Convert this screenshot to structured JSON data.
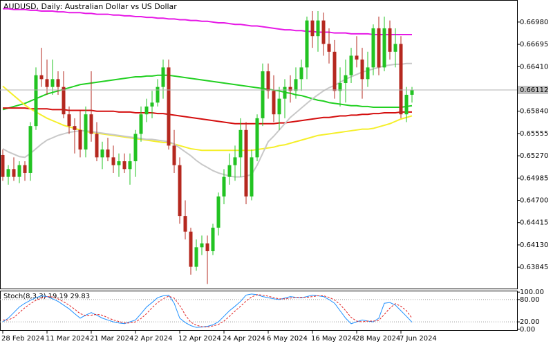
{
  "chart_data": {
    "type": "candlestick",
    "title": "AUDUSD, Daily:  Australian Dollar vs US Dollar",
    "categories": [
      "28 Feb 2024",
      null,
      null,
      null,
      null,
      null,
      null,
      null,
      "11 Mar 2024",
      null,
      null,
      null,
      null,
      null,
      null,
      null,
      "21 Mar 2024",
      null,
      null,
      null,
      null,
      null,
      null,
      null,
      "2 Apr 2024",
      null,
      null,
      null,
      null,
      null,
      null,
      null,
      "12 Apr 2024",
      null,
      null,
      null,
      null,
      null,
      null,
      null,
      "24 Apr 2024",
      null,
      null,
      null,
      null,
      null,
      null,
      null,
      "6 May 2024",
      null,
      null,
      null,
      null,
      null,
      null,
      null,
      "16 May 2024",
      null,
      null,
      null,
      null,
      null,
      null,
      null,
      "28 May 2024",
      null,
      null,
      null,
      null,
      null,
      null,
      null,
      "7 Jun 2024",
      null,
      null
    ],
    "open": [
      0.6528,
      0.65,
      0.651,
      0.65,
      0.6515,
      0.6505,
      0.6565,
      0.663,
      0.6625,
      0.6615,
      0.6625,
      0.6615,
      0.658,
      0.6565,
      0.656,
      0.6535,
      0.658,
      0.6555,
      0.6525,
      0.6535,
      0.6525,
      0.6515,
      0.652,
      0.651,
      0.652,
      0.6555,
      0.658,
      0.659,
      0.6595,
      0.6615,
      0.664,
      0.654,
      0.6515,
      0.645,
      0.643,
      0.6385,
      0.641,
      0.6415,
      0.6405,
      0.6435,
      0.6475,
      0.65,
      0.6515,
      0.6525,
      0.656,
      0.6475,
      0.6525,
      0.6575,
      0.6635,
      0.661,
      0.658,
      0.66,
      0.6615,
      0.661,
      0.6625,
      0.664,
      0.67,
      0.668,
      0.67,
      0.667,
      0.666,
      0.661,
      0.662,
      0.663,
      0.6655,
      0.665,
      0.6625,
      0.664,
      0.669,
      0.664,
      0.669,
      0.666,
      0.667,
      0.658,
      0.6605
    ],
    "high": [
      0.6535,
      0.6515,
      0.6525,
      0.652,
      0.652,
      0.657,
      0.664,
      0.6665,
      0.665,
      0.665,
      0.6635,
      0.6635,
      0.659,
      0.6575,
      0.6585,
      0.659,
      0.6635,
      0.657,
      0.6545,
      0.655,
      0.654,
      0.653,
      0.653,
      0.653,
      0.656,
      0.659,
      0.66,
      0.661,
      0.6625,
      0.665,
      0.665,
      0.656,
      0.6525,
      0.647,
      0.6435,
      0.642,
      0.6425,
      0.6425,
      0.644,
      0.648,
      0.651,
      0.653,
      0.654,
      0.6575,
      0.657,
      0.6535,
      0.658,
      0.6645,
      0.6645,
      0.663,
      0.6615,
      0.6625,
      0.663,
      0.664,
      0.665,
      0.6705,
      0.6712,
      0.6712,
      0.671,
      0.669,
      0.6675,
      0.664,
      0.665,
      0.6665,
      0.668,
      0.6665,
      0.666,
      0.6695,
      0.6705,
      0.6705,
      0.67,
      0.669,
      0.668,
      0.6615,
      0.6615
    ],
    "low": [
      0.6495,
      0.649,
      0.6495,
      0.6492,
      0.6495,
      0.6495,
      0.656,
      0.6615,
      0.6605,
      0.6605,
      0.6605,
      0.6575,
      0.6555,
      0.653,
      0.6525,
      0.6525,
      0.6545,
      0.652,
      0.651,
      0.652,
      0.6505,
      0.65,
      0.6505,
      0.649,
      0.65,
      0.6545,
      0.657,
      0.6575,
      0.659,
      0.66,
      0.6535,
      0.6505,
      0.644,
      0.642,
      0.6375,
      0.638,
      0.64,
      0.6363,
      0.64,
      0.6425,
      0.6465,
      0.649,
      0.6495,
      0.65,
      0.6465,
      0.647,
      0.652,
      0.6565,
      0.66,
      0.657,
      0.656,
      0.6575,
      0.6595,
      0.66,
      0.661,
      0.6625,
      0.6665,
      0.666,
      0.6655,
      0.6645,
      0.66,
      0.659,
      0.6595,
      0.662,
      0.664,
      0.66,
      0.6615,
      0.663,
      0.663,
      0.6635,
      0.665,
      0.664,
      0.6575,
      0.657,
      0.6595
    ],
    "close": [
      0.65,
      0.651,
      0.65,
      0.6515,
      0.6505,
      0.6565,
      0.663,
      0.6625,
      0.6615,
      0.6625,
      0.6615,
      0.658,
      0.6565,
      0.656,
      0.6535,
      0.658,
      0.6555,
      0.6525,
      0.6535,
      0.6525,
      0.6515,
      0.652,
      0.651,
      0.652,
      0.6555,
      0.658,
      0.659,
      0.6595,
      0.6615,
      0.664,
      0.654,
      0.6515,
      0.645,
      0.643,
      0.6385,
      0.641,
      0.6415,
      0.6405,
      0.6435,
      0.6475,
      0.65,
      0.6515,
      0.6525,
      0.656,
      0.6475,
      0.6525,
      0.6575,
      0.6635,
      0.661,
      0.658,
      0.66,
      0.6615,
      0.661,
      0.6625,
      0.664,
      0.67,
      0.668,
      0.67,
      0.667,
      0.666,
      0.661,
      0.662,
      0.663,
      0.6655,
      0.665,
      0.6625,
      0.664,
      0.669,
      0.664,
      0.669,
      0.666,
      0.667,
      0.658,
      0.6605,
      0.6611
    ],
    "up_color": "#22c322",
    "down_color": "#b5281f",
    "lines": [
      {
        "color": "#e619e6",
        "values": [
          0.6715,
          0.6715,
          0.6714,
          0.6714,
          0.6714,
          0.6713,
          0.6713,
          0.6712,
          0.6712,
          0.6712,
          0.6711,
          0.6711,
          0.671,
          0.671,
          0.671,
          0.6709,
          0.6709,
          0.6708,
          0.6708,
          0.6708,
          0.6707,
          0.6707,
          0.6706,
          0.6706,
          0.6705,
          0.6705,
          0.6704,
          0.6704,
          0.6703,
          0.6703,
          0.6702,
          0.6702,
          0.6701,
          0.6701,
          0.67,
          0.67,
          0.6699,
          0.6699,
          0.6698,
          0.6697,
          0.6697,
          0.6696,
          0.6695,
          0.6695,
          0.6694,
          0.6693,
          0.6693,
          0.6692,
          0.6691,
          0.669,
          0.6689,
          0.6688,
          0.6688,
          0.6687,
          0.6687,
          0.6686,
          0.6686,
          0.6685,
          0.6685,
          0.6685,
          0.6684,
          0.6684,
          0.6684,
          0.6683,
          0.6683,
          0.6683,
          0.6683,
          0.6682,
          0.6682,
          0.6682,
          0.6682,
          0.6682,
          0.6682,
          0.6682,
          0.6682
        ]
      },
      {
        "color": "#22d022",
        "values": [
          0.6586,
          0.6588,
          0.659,
          0.6592,
          0.6594,
          0.6597,
          0.66,
          0.6603,
          0.6606,
          0.6608,
          0.661,
          0.6612,
          0.6614,
          0.6616,
          0.6618,
          0.6619,
          0.662,
          0.6621,
          0.6622,
          0.6623,
          0.6624,
          0.6625,
          0.6626,
          0.6627,
          0.6628,
          0.6628,
          0.6629,
          0.6629,
          0.663,
          0.663,
          0.663,
          0.6629,
          0.6628,
          0.6627,
          0.6626,
          0.6625,
          0.6624,
          0.6623,
          0.6622,
          0.6621,
          0.662,
          0.6619,
          0.6618,
          0.6617,
          0.6616,
          0.6615,
          0.6614,
          0.6613,
          0.6612,
          0.6611,
          0.661,
          0.6608,
          0.6607,
          0.6605,
          0.6604,
          0.6602,
          0.66,
          0.6598,
          0.6597,
          0.6595,
          0.6594,
          0.6593,
          0.6592,
          0.6591,
          0.6591,
          0.659,
          0.659,
          0.6589,
          0.6589,
          0.6589,
          0.6589,
          0.6589,
          0.6589,
          0.659,
          0.6591
        ]
      },
      {
        "color": "#d40e0e",
        "values": [
          0.6588,
          0.6588,
          0.6588,
          0.6588,
          0.6588,
          0.6587,
          0.6587,
          0.6587,
          0.6587,
          0.6586,
          0.6586,
          0.6586,
          0.6585,
          0.6585,
          0.6585,
          0.6585,
          0.6585,
          0.6584,
          0.6584,
          0.6584,
          0.6584,
          0.6583,
          0.6583,
          0.6583,
          0.6582,
          0.6582,
          0.6582,
          0.6582,
          0.6581,
          0.6581,
          0.658,
          0.6579,
          0.6578,
          0.6577,
          0.6576,
          0.6575,
          0.6574,
          0.6573,
          0.6572,
          0.6571,
          0.657,
          0.6569,
          0.6568,
          0.6568,
          0.6568,
          0.6568,
          0.6568,
          0.6568,
          0.6568,
          0.6568,
          0.6569,
          0.6569,
          0.657,
          0.6571,
          0.6572,
          0.6573,
          0.6574,
          0.6575,
          0.6576,
          0.6576,
          0.6577,
          0.6578,
          0.6578,
          0.6579,
          0.6579,
          0.658,
          0.658,
          0.6581,
          0.6581,
          0.6582,
          0.6582,
          0.6582,
          0.6583,
          0.6583,
          0.6583
        ]
      },
      {
        "color": "#f5ef2a",
        "values": [
          0.6616,
          0.661,
          0.6604,
          0.6598,
          0.6592,
          0.6587,
          0.6583,
          0.6579,
          0.6575,
          0.6572,
          0.6569,
          0.6566,
          0.6564,
          0.6562,
          0.656,
          0.6558,
          0.6557,
          0.6556,
          0.6555,
          0.6554,
          0.6553,
          0.6552,
          0.6551,
          0.655,
          0.6549,
          0.6548,
          0.6547,
          0.6546,
          0.6545,
          0.6544,
          0.6544,
          0.6542,
          0.654,
          0.6538,
          0.6536,
          0.6535,
          0.6534,
          0.6534,
          0.6534,
          0.6534,
          0.6534,
          0.6534,
          0.6534,
          0.6534,
          0.6534,
          0.6534,
          0.6535,
          0.6536,
          0.6537,
          0.6538,
          0.654,
          0.6541,
          0.6543,
          0.6545,
          0.6547,
          0.6549,
          0.6551,
          0.6553,
          0.6554,
          0.6555,
          0.6556,
          0.6557,
          0.6558,
          0.6559,
          0.656,
          0.6561,
          0.6561,
          0.6562,
          0.6564,
          0.6566,
          0.6568,
          0.6571,
          0.6574,
          0.6576,
          0.6578
        ]
      },
      {
        "color": "#c8c8c8",
        "values": [
          0.6536,
          0.6532,
          0.6529,
          0.6526,
          0.6525,
          0.653,
          0.6536,
          0.6542,
          0.6547,
          0.655,
          0.6553,
          0.6555,
          0.6557,
          0.6558,
          0.6559,
          0.6559,
          0.6558,
          0.6557,
          0.6556,
          0.6555,
          0.6554,
          0.6553,
          0.6552,
          0.6551,
          0.655,
          0.6549,
          0.6548,
          0.6548,
          0.6547,
          0.6546,
          0.6545,
          0.6542,
          0.6537,
          0.6532,
          0.6527,
          0.6521,
          0.6516,
          0.6512,
          0.6508,
          0.6505,
          0.6503,
          0.6501,
          0.65,
          0.65,
          0.6501,
          0.6503,
          0.6515,
          0.653,
          0.6545,
          0.6552,
          0.656,
          0.6568,
          0.6576,
          0.6582,
          0.6588,
          0.6594,
          0.66,
          0.6605,
          0.661,
          0.6614,
          0.6617,
          0.6621,
          0.6625,
          0.6628,
          0.6631,
          0.6634,
          0.6636,
          0.6638,
          0.664,
          0.6642,
          0.6643,
          0.6644,
          0.6644,
          0.6645,
          0.6645
        ]
      }
    ],
    "ylim": [
      0.63563,
      0.67262
    ],
    "yticks": [
      {
        "value": 0.6698,
        "label": "0.66980"
      },
      0.66695,
      {
        "value": 0.6641,
        "label": "0.66410"
      },
      {
        "value": 0.6584,
        "label": "0.65840"
      },
      0.65555,
      {
        "value": 0.6527,
        "label": "0.65270"
      },
      0.64985,
      {
        "value": 0.647,
        "label": "0.64700"
      },
      0.64415,
      {
        "value": 0.6413,
        "label": "0.64130"
      },
      0.63845
    ],
    "current_price": 0.66112,
    "stoch": {
      "title": "Stoch(8,3,3) 19.19 29.83",
      "ylim": [
        -4,
        104
      ],
      "yticks": [
        {
          "value": 100,
          "label": "100.00"
        },
        {
          "value": 80,
          "label": "80.00"
        },
        {
          "value": 20,
          "label": "20.00"
        },
        {
          "value": 0,
          "label": "0.00"
        }
      ],
      "levels": [
        80,
        20
      ],
      "k": {
        "color": "#1e90ff",
        "values": [
          20,
          30,
          45,
          60,
          70,
          78,
          85,
          90,
          88,
          82,
          75,
          65,
          55,
          42,
          30,
          38,
          45,
          38,
          30,
          25,
          20,
          17,
          15,
          20,
          25,
          42,
          60,
          72,
          85,
          90,
          92,
          70,
          30,
          18,
          10,
          5,
          6,
          8,
          12,
          20,
          35,
          50,
          62,
          75,
          92,
          95,
          93,
          88,
          85,
          82,
          80,
          84,
          88,
          86,
          85,
          88,
          92,
          90,
          88,
          80,
          70,
          50,
          30,
          15,
          20,
          25,
          22,
          20,
          30,
          70,
          72,
          65,
          50,
          35,
          19.19
        ]
      },
      "d": {
        "color": "#e02020",
        "values": [
          25,
          25,
          32,
          45,
          58,
          69,
          78,
          84,
          88,
          87,
          82,
          74,
          65,
          54,
          42,
          37,
          38,
          40,
          38,
          31,
          25,
          21,
          17,
          17,
          20,
          29,
          42,
          58,
          72,
          82,
          89,
          84,
          64,
          39,
          19,
          11,
          7,
          6,
          9,
          13,
          22,
          35,
          49,
          62,
          76,
          87,
          93,
          92,
          89,
          85,
          82,
          82,
          84,
          86,
          86,
          86,
          88,
          90,
          90,
          86,
          79,
          67,
          50,
          32,
          22,
          20,
          22,
          22,
          24,
          40,
          57,
          69,
          62,
          50,
          29.83
        ]
      }
    }
  }
}
